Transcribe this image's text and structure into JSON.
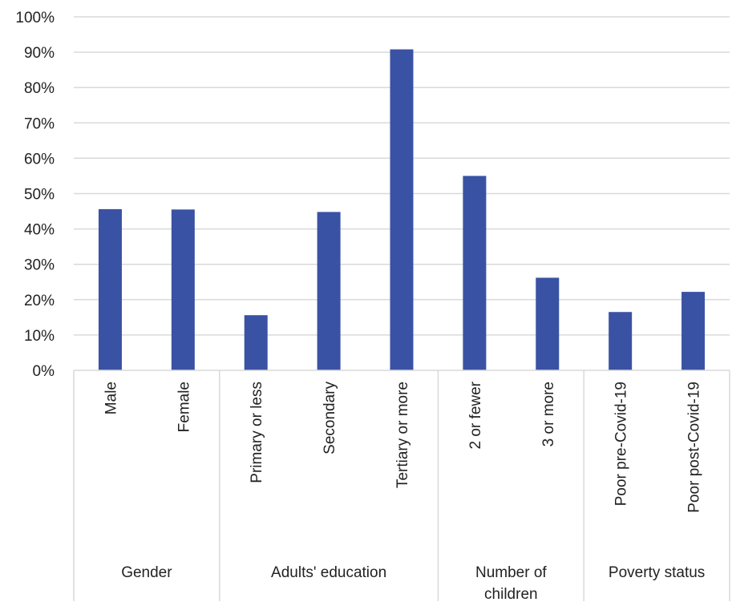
{
  "chart_data": {
    "type": "bar",
    "categories": [
      "Male",
      "Female",
      "Primary or less",
      "Secondary",
      "Tertiary or more",
      "2 or fewer",
      "3 or more",
      "Poor pre-Covid-19",
      "Poor post-Covid-19"
    ],
    "values": [
      45.6,
      45.5,
      15.6,
      44.8,
      90.8,
      55.0,
      26.2,
      16.5,
      22.2
    ],
    "groups": [
      {
        "label": "Gender",
        "lines": [
          "Gender"
        ],
        "start": 0,
        "count": 2
      },
      {
        "label": "Adults' education",
        "lines": [
          "Adults' education"
        ],
        "start": 2,
        "count": 3
      },
      {
        "label": "Number of children",
        "lines": [
          "Number of",
          "children"
        ],
        "start": 5,
        "count": 2
      },
      {
        "label": "Poverty status",
        "lines": [
          "Poverty status"
        ],
        "start": 7,
        "count": 2
      }
    ],
    "yticks": [
      "0%",
      "10%",
      "20%",
      "30%",
      "40%",
      "50%",
      "60%",
      "70%",
      "80%",
      "90%",
      "100%"
    ],
    "ylim": [
      0,
      100
    ],
    "title": "",
    "xlabel": "",
    "ylabel": "",
    "grid": true,
    "bar_color": "#3a52a4",
    "grid_color": "#d9d9d9"
  }
}
